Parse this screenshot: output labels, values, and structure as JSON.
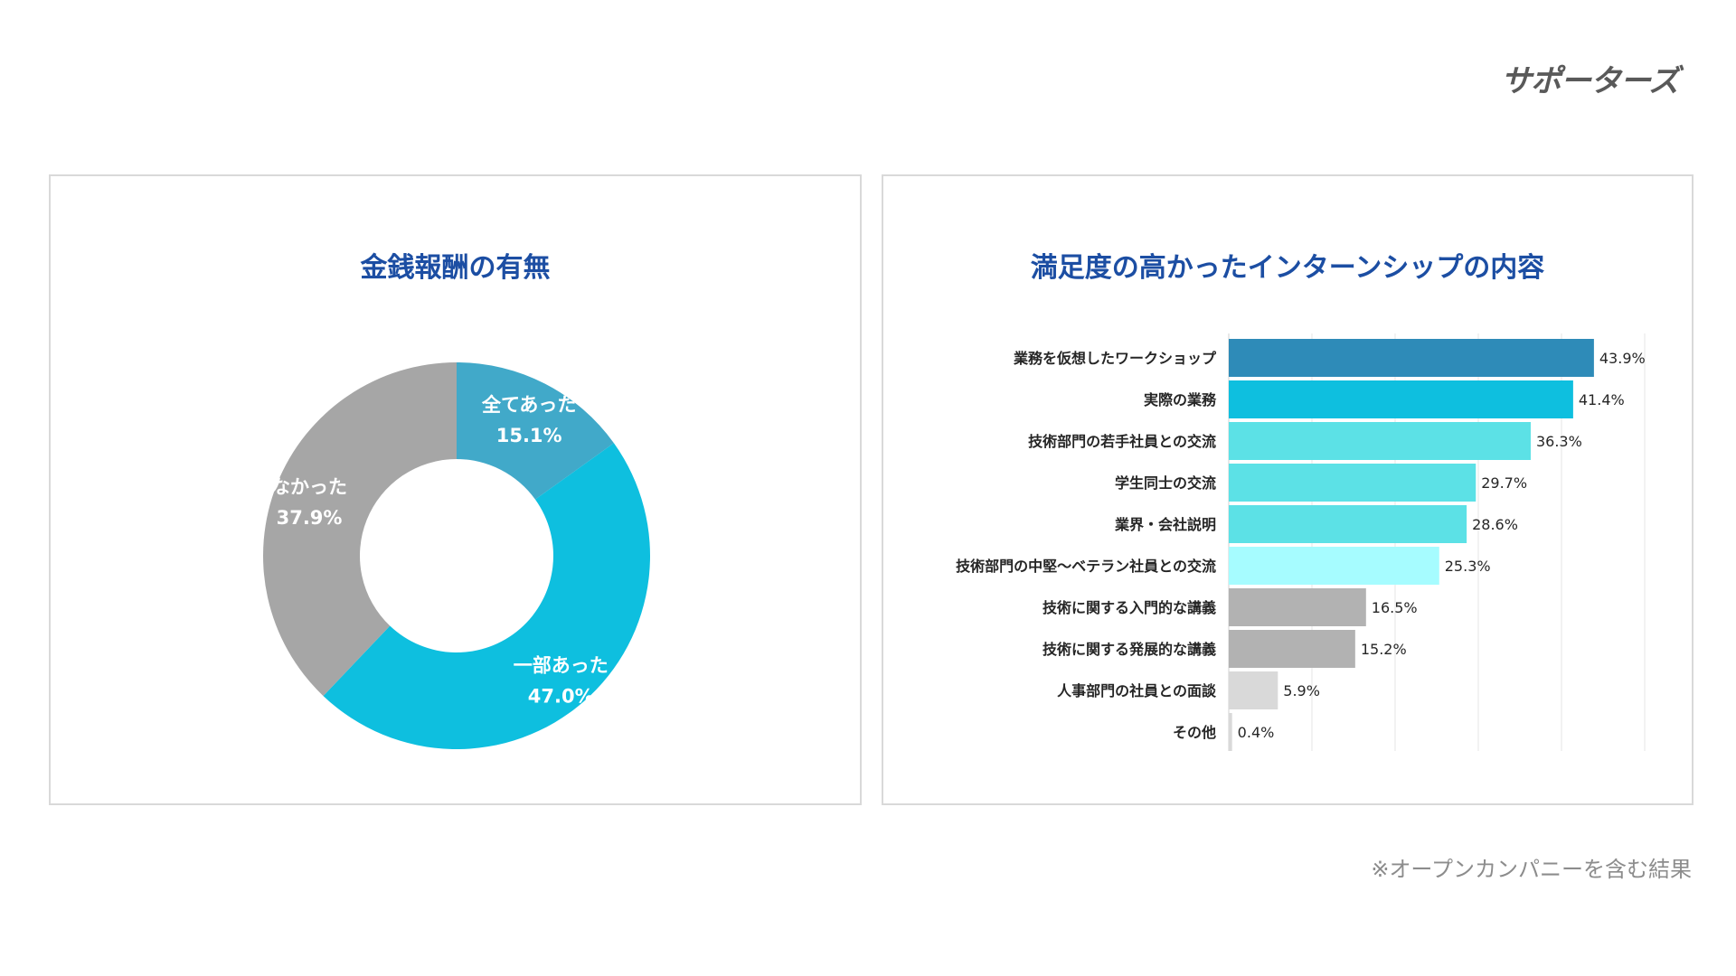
{
  "logo": {
    "text": "サポーターズ"
  },
  "footnote": "※オープンカンパニーを含む結果",
  "chart_data": [
    {
      "type": "pie",
      "title": "金銭報酬の有無",
      "categories": [
        "全てあった",
        "一部あった",
        "なかった"
      ],
      "values": [
        15.1,
        47.0,
        37.9
      ],
      "value_labels": [
        "15.1%",
        "47.0%",
        "37.9%"
      ],
      "colors": [
        "#41a9c9",
        "#0ebfdf",
        "#a6a6a6"
      ],
      "donut": true
    },
    {
      "type": "bar",
      "orientation": "horizontal",
      "title": "満足度の高かったインターンシップの内容",
      "categories": [
        "業務を仮想したワークショップ",
        "実際の業務",
        "技術部門の若手社員との交流",
        "学生同士の交流",
        "業界・会社説明",
        "技術部門の中堅〜ベテラン社員との交流",
        "技術に関する入門的な講義",
        "技術に関する発展的な講義",
        "人事部門の社員との面談",
        "その他"
      ],
      "values": [
        43.9,
        41.4,
        36.3,
        29.7,
        28.6,
        25.3,
        16.5,
        15.2,
        5.9,
        0.4
      ],
      "value_labels": [
        "43.9%",
        "41.4%",
        "36.3%",
        "29.7%",
        "28.6%",
        "25.3%",
        "16.5%",
        "15.2%",
        "5.9%",
        "0.4%"
      ],
      "colors": [
        "#2e8bb8",
        "#0ebfdf",
        "#5ce1e6",
        "#5ce1e6",
        "#5ce1e6",
        "#a6fcff",
        "#b2b2b2",
        "#b2b2b2",
        "#d9d9d9",
        "#d9d9d9"
      ],
      "xlim": [
        0,
        50
      ],
      "grid": true
    }
  ]
}
